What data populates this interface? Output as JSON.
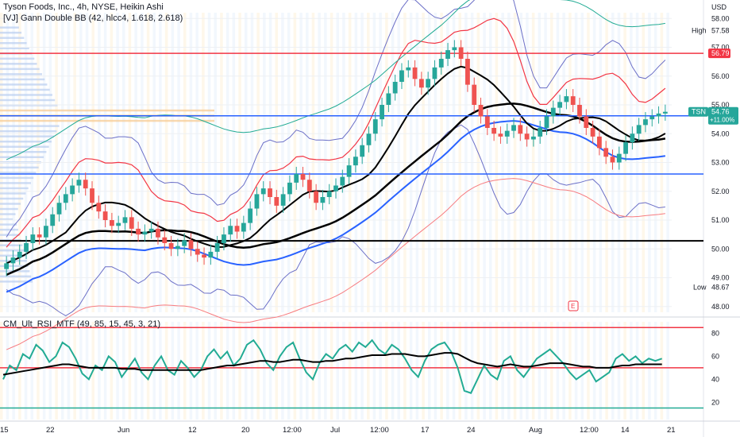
{
  "legend": {
    "title": "Tyson Foods, Inc., 4h, NYSE, Heikin Ashi",
    "indicator1": "[VJ] Gann Double BB (42, hlcc4, 1.618, 2.618)",
    "indicator2": "CM_Ult_RSI_MTF (49, 85, 15, 45, 3, 21)",
    "currency": "USD"
  },
  "markers": {
    "high_label": "High",
    "high_value": "57.58",
    "low_label": "Low",
    "low_value": "48.67",
    "last_label": "TSN",
    "last_value": "54.76",
    "last_change": "+11.00%",
    "red_line_value": "56.79",
    "earnings_marker": "E"
  },
  "colors": {
    "bull": "#26a69a",
    "bear": "#ef5350",
    "black": "#000000",
    "blue": "#2962ff",
    "red": "#f23645",
    "teal": "#22ab94"
  },
  "chart_data": [
    {
      "type": "candlestick",
      "title": "Tyson Foods, Inc., 4h, NYSE, Heikin Ashi",
      "x_tick_labels": [
        "15",
        "22",
        "Jun",
        "12",
        "20",
        "12:00",
        "Jul",
        "12:00",
        "17",
        "24",
        "Aug",
        "12:00",
        "14",
        "21"
      ],
      "y_tick_labels": [
        "48.00",
        "49.00",
        "50.00",
        "51.00",
        "52.00",
        "53.00",
        "54.00",
        "55.00",
        "56.00",
        "57.00",
        "58.00"
      ],
      "ylim": [
        47.8,
        58.2
      ],
      "horizontal_levels": [
        {
          "value": 56.79,
          "color": "red"
        },
        {
          "value": 54.62,
          "color": "blue"
        },
        {
          "value": 52.6,
          "color": "blue"
        },
        {
          "value": 50.28,
          "color": "black"
        }
      ],
      "series": [
        {
          "values": [
            49.5,
            49.7,
            49.9,
            50.2,
            50.5,
            50.4,
            50.8,
            51.2,
            51.6,
            51.9,
            52.2,
            52.4,
            52.1,
            51.6,
            51.3,
            51.0,
            50.8,
            50.9,
            51.1,
            50.7,
            50.5,
            50.6,
            50.7,
            50.4,
            50.2,
            50.0,
            50.1,
            50.3,
            50.0,
            49.8,
            49.7,
            49.9,
            50.2,
            50.5,
            50.8,
            50.6,
            50.9,
            51.4,
            51.9,
            52.1,
            51.8,
            51.5,
            51.9,
            52.3,
            52.6,
            52.4,
            52.0,
            51.6,
            51.8,
            52.0,
            52.2,
            52.5,
            52.9,
            53.2,
            53.6,
            54.0,
            54.5,
            55.0,
            55.4,
            55.8,
            56.2,
            56.3,
            55.9,
            55.6,
            55.9,
            56.3,
            56.6,
            56.9,
            57.0,
            56.6,
            55.7,
            55.0,
            54.6,
            54.2,
            54.0,
            53.9,
            54.1,
            54.3,
            54.0,
            53.8,
            53.9,
            54.2,
            54.6,
            54.9,
            55.1,
            55.3,
            55.0,
            54.6,
            54.2,
            53.9,
            53.5,
            53.2,
            53.0,
            53.3,
            53.7,
            54.0,
            54.3,
            54.5,
            54.6,
            54.7,
            54.76
          ]
        }
      ]
    },
    {
      "type": "line",
      "title": "CM_Ult_RSI_MTF (49, 85, 15, 45, 3, 21)",
      "y_tick_labels": [
        "20",
        "40",
        "60",
        "80"
      ],
      "ylim": [
        5,
        90
      ],
      "horizontal_levels": [
        85,
        50,
        15
      ],
      "series": [
        {
          "values": [
            40,
            52,
            48,
            62,
            58,
            70,
            65,
            55,
            60,
            72,
            68,
            58,
            45,
            40,
            52,
            48,
            60,
            55,
            42,
            50,
            58,
            46,
            40,
            52,
            60,
            48,
            44,
            56,
            50,
            42,
            48,
            60,
            66,
            58,
            64,
            52,
            58,
            70,
            74,
            66,
            54,
            48,
            60,
            68,
            72,
            58,
            46,
            40,
            54,
            62,
            58,
            66,
            70,
            64,
            72,
            68,
            74,
            66,
            62,
            70,
            66,
            58,
            48,
            42,
            56,
            66,
            70,
            72,
            64,
            50,
            30,
            28,
            40,
            52,
            44,
            40,
            56,
            60,
            48,
            42,
            50,
            58,
            62,
            66,
            60,
            54,
            46,
            40,
            44,
            48,
            38,
            42,
            46,
            58,
            62,
            56,
            60,
            54,
            58,
            56,
            58
          ]
        },
        {
          "values": [
            44,
            45,
            46,
            47,
            48,
            49,
            50,
            51,
            52,
            53,
            53,
            52,
            51,
            50,
            50,
            50,
            50,
            50,
            49,
            49,
            49,
            48,
            48,
            48,
            48,
            48,
            48,
            48,
            48,
            48,
            48,
            49,
            50,
            51,
            52,
            52,
            53,
            54,
            55,
            56,
            56,
            55,
            55,
            56,
            57,
            57,
            56,
            55,
            55,
            56,
            56,
            57,
            58,
            58,
            59,
            60,
            61,
            61,
            61,
            62,
            62,
            62,
            61,
            60,
            60,
            61,
            62,
            63,
            63,
            62,
            59,
            56,
            54,
            53,
            52,
            51,
            52,
            53,
            52,
            51,
            51,
            52,
            53,
            54,
            54,
            54,
            53,
            52,
            51,
            51,
            50,
            50,
            50,
            51,
            52,
            52,
            53,
            53,
            53,
            53,
            53
          ]
        }
      ]
    }
  ]
}
